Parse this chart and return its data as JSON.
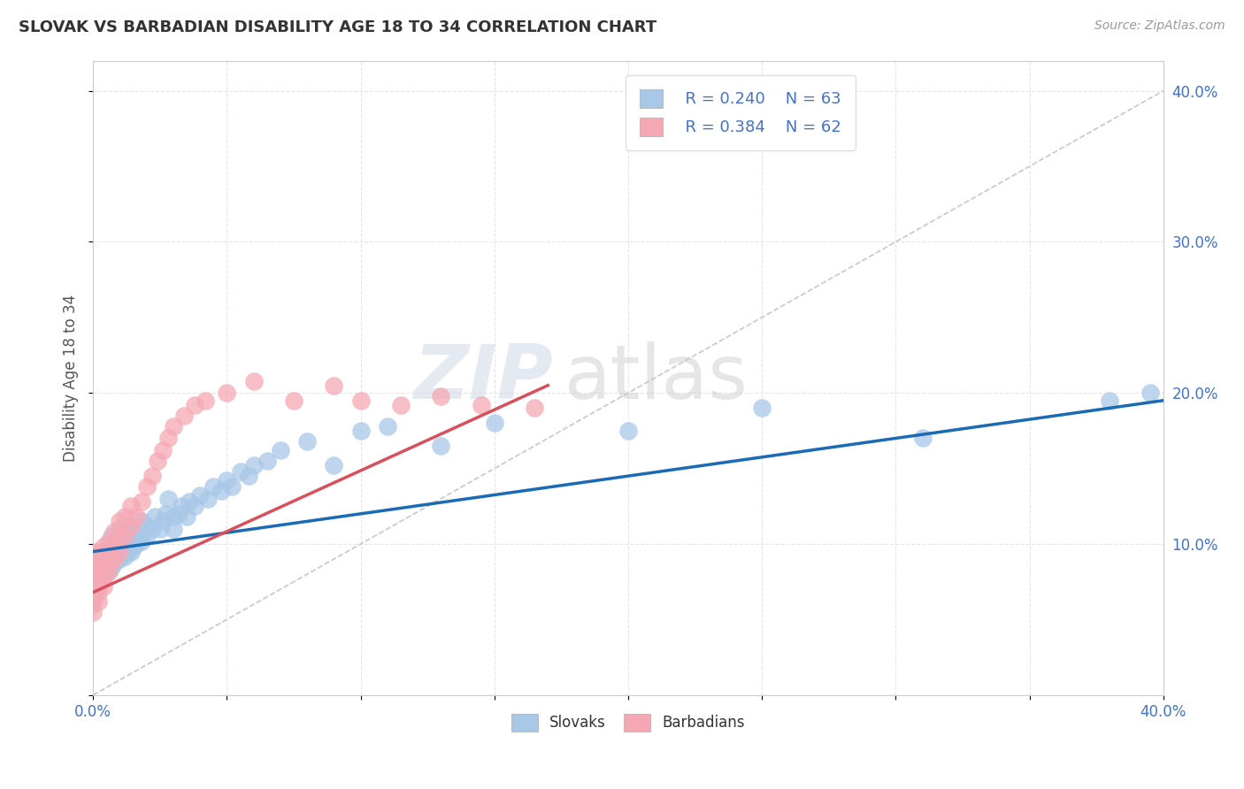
{
  "title": "SLOVAK VS BARBADIAN DISABILITY AGE 18 TO 34 CORRELATION CHART",
  "source": "Source: ZipAtlas.com",
  "ylabel": "Disability Age 18 to 34",
  "xlim": [
    0.0,
    0.4
  ],
  "ylim": [
    0.0,
    0.42
  ],
  "xtick_positions": [
    0.0,
    0.05,
    0.1,
    0.15,
    0.2,
    0.25,
    0.3,
    0.35,
    0.4
  ],
  "ytick_positions": [
    0.0,
    0.1,
    0.2,
    0.3,
    0.4
  ],
  "slovak_color": "#a8c8e8",
  "barbadian_color": "#f5a8b4",
  "slovak_line_color": "#1a6ab5",
  "barbadian_line_color": "#d94f5c",
  "diagonal_color": "#c8c8c8",
  "legend_R_slovak": "R = 0.240",
  "legend_N_slovak": "N = 63",
  "legend_R_barbadian": "R = 0.384",
  "legend_N_barbadian": "N = 62",
  "watermark_zip": "ZIP",
  "watermark_atlas": "atlas",
  "slovak_x": [
    0.005,
    0.005,
    0.005,
    0.007,
    0.007,
    0.007,
    0.007,
    0.008,
    0.008,
    0.01,
    0.01,
    0.01,
    0.01,
    0.012,
    0.012,
    0.012,
    0.013,
    0.013,
    0.014,
    0.014,
    0.015,
    0.015,
    0.016,
    0.017,
    0.018,
    0.018,
    0.02,
    0.02,
    0.022,
    0.023,
    0.025,
    0.026,
    0.027,
    0.028,
    0.03,
    0.03,
    0.032,
    0.033,
    0.035,
    0.036,
    0.038,
    0.04,
    0.043,
    0.045,
    0.048,
    0.05,
    0.052,
    0.055,
    0.058,
    0.06,
    0.065,
    0.07,
    0.08,
    0.09,
    0.1,
    0.11,
    0.13,
    0.15,
    0.2,
    0.25,
    0.31,
    0.38,
    0.395
  ],
  "slovak_y": [
    0.08,
    0.09,
    0.095,
    0.085,
    0.092,
    0.098,
    0.105,
    0.088,
    0.095,
    0.09,
    0.095,
    0.1,
    0.11,
    0.092,
    0.098,
    0.105,
    0.095,
    0.108,
    0.095,
    0.102,
    0.098,
    0.108,
    0.1,
    0.105,
    0.102,
    0.115,
    0.105,
    0.112,
    0.11,
    0.118,
    0.11,
    0.115,
    0.12,
    0.13,
    0.11,
    0.118,
    0.12,
    0.125,
    0.118,
    0.128,
    0.125,
    0.132,
    0.13,
    0.138,
    0.135,
    0.142,
    0.138,
    0.148,
    0.145,
    0.152,
    0.155,
    0.162,
    0.168,
    0.152,
    0.175,
    0.178,
    0.165,
    0.18,
    0.175,
    0.19,
    0.17,
    0.195,
    0.2
  ],
  "barbadian_x": [
    0.0,
    0.0,
    0.0,
    0.0,
    0.0,
    0.0,
    0.0,
    0.0,
    0.0,
    0.0,
    0.0,
    0.0,
    0.0,
    0.0,
    0.0,
    0.002,
    0.002,
    0.002,
    0.002,
    0.002,
    0.002,
    0.002,
    0.002,
    0.004,
    0.004,
    0.004,
    0.004,
    0.004,
    0.006,
    0.006,
    0.006,
    0.006,
    0.008,
    0.008,
    0.008,
    0.01,
    0.01,
    0.01,
    0.012,
    0.012,
    0.014,
    0.014,
    0.016,
    0.018,
    0.02,
    0.022,
    0.024,
    0.026,
    0.028,
    0.03,
    0.034,
    0.038,
    0.042,
    0.05,
    0.06,
    0.075,
    0.09,
    0.1,
    0.115,
    0.13,
    0.145,
    0.165
  ],
  "barbadian_y": [
    0.055,
    0.06,
    0.065,
    0.068,
    0.07,
    0.072,
    0.075,
    0.078,
    0.08,
    0.082,
    0.085,
    0.088,
    0.09,
    0.092,
    0.095,
    0.062,
    0.068,
    0.072,
    0.076,
    0.08,
    0.085,
    0.09,
    0.095,
    0.072,
    0.078,
    0.085,
    0.092,
    0.098,
    0.082,
    0.088,
    0.095,
    0.102,
    0.09,
    0.098,
    0.108,
    0.095,
    0.105,
    0.115,
    0.105,
    0.118,
    0.112,
    0.125,
    0.118,
    0.128,
    0.138,
    0.145,
    0.155,
    0.162,
    0.17,
    0.178,
    0.185,
    0.192,
    0.195,
    0.2,
    0.208,
    0.195,
    0.205,
    0.195,
    0.192,
    0.198,
    0.192,
    0.19
  ],
  "slovak_trend_x": [
    0.0,
    0.4
  ],
  "slovak_trend_y": [
    0.095,
    0.195
  ],
  "barbadian_trend_x": [
    0.0,
    0.17
  ],
  "barbadian_trend_y": [
    0.068,
    0.205
  ]
}
